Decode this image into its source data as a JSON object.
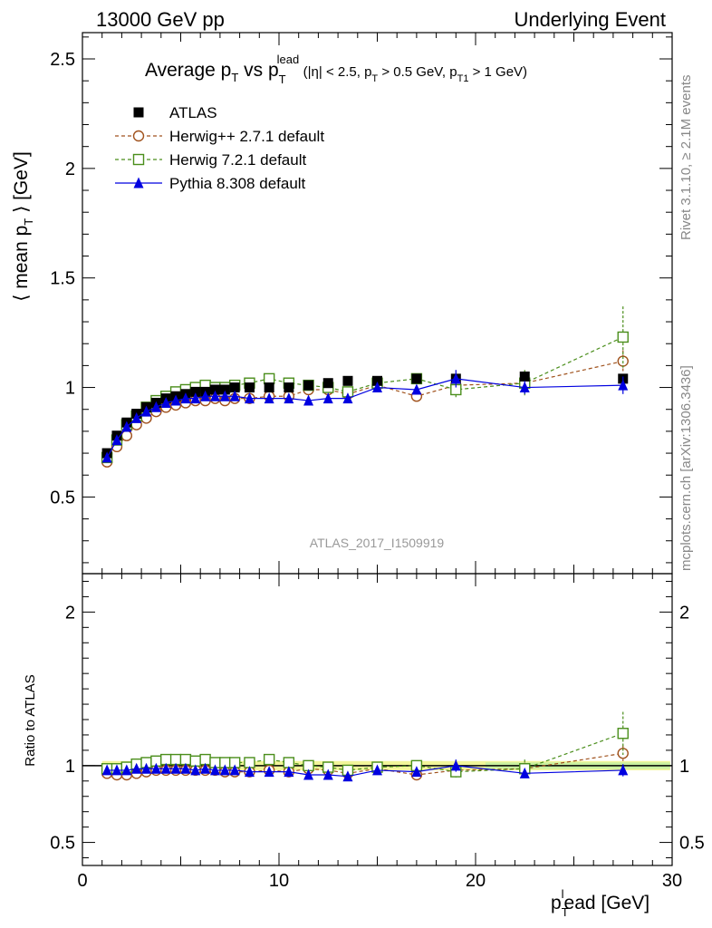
{
  "header": {
    "left": "13000 GeV pp",
    "right": "Underlying Event"
  },
  "side": {
    "rivet": "Rivet 3.1.10, ≥ 2.1M events",
    "mcplots": "mcplots.cern.ch [arXiv:1306.3436]"
  },
  "watermark": "ATLAS_2017_I1509919",
  "title": {
    "main": "Average p",
    "main_sub": "T",
    "vs": " vs p",
    "vs_sub": "T",
    "vs_sup": "lead",
    "cuts": "(|η| < 2.5, p",
    "cuts_sub1": "T",
    "cuts_mid": " > 0.5 GeV, p",
    "cuts_sub2": "T1",
    "cuts_end": " > 1 GeV)"
  },
  "axes": {
    "ylabel_top": "⟨ mean p",
    "ylabel_top_sub": "T",
    "ylabel_top_end": " ⟩ [GeV]",
    "ylabel_bottom": "Ratio to ATLAS",
    "xlabel": "p",
    "xlabel_sub": "T",
    "xlabel_sup": "l",
    "xlabel_end": "ead [GeV]",
    "xlim": [
      0,
      30
    ],
    "ylim_top": [
      0.15,
      2.62
    ],
    "ylim_bottom": [
      0.35,
      2.25
    ],
    "xticks": [
      "0",
      "10",
      "20",
      "30"
    ],
    "yticks_top": [
      "0.5",
      "1",
      "1.5",
      "2",
      "2.5"
    ],
    "yticks_bottom": [
      "0.5",
      "1",
      "2"
    ]
  },
  "legend": [
    {
      "label": "ATLAS",
      "marker": "square-filled",
      "color": "#000000"
    },
    {
      "label": "Herwig++ 2.7.1 default",
      "marker": "circle-open",
      "color": "#a0521d"
    },
    {
      "label": "Herwig 7.2.1 default",
      "marker": "square-open",
      "color": "#4a8e1b"
    },
    {
      "label": "Pythia 8.308 default",
      "marker": "triangle-filled",
      "color": "#0000e0"
    }
  ],
  "chart_data": {
    "type": "scatter",
    "title": "Average pT vs pT lead",
    "xlabel": "pT lead [GeV]",
    "ylabel": "⟨ mean pT ⟩ [GeV]",
    "grid": false,
    "legend_position": "top-left",
    "x": [
      1.25,
      1.75,
      2.25,
      2.75,
      3.25,
      3.75,
      4.25,
      4.75,
      5.25,
      5.75,
      6.25,
      6.75,
      7.25,
      7.75,
      8.5,
      9.5,
      10.5,
      11.5,
      12.5,
      13.5,
      15,
      17,
      19,
      22.5,
      27.5
    ],
    "series": [
      {
        "name": "ATLAS",
        "color": "#000000",
        "values": [
          0.7,
          0.78,
          0.84,
          0.88,
          0.91,
          0.93,
          0.95,
          0.96,
          0.97,
          0.98,
          0.98,
          0.99,
          0.99,
          1.0,
          1.0,
          1.0,
          1.0,
          1.01,
          1.02,
          1.03,
          1.03,
          1.04,
          1.04,
          1.05,
          1.04
        ],
        "errors": [
          0.01,
          0.01,
          0.01,
          0.01,
          0.01,
          0.01,
          0.01,
          0.01,
          0.01,
          0.01,
          0.01,
          0.01,
          0.01,
          0.01,
          0.01,
          0.01,
          0.01,
          0.01,
          0.01,
          0.01,
          0.01,
          0.01,
          0.02,
          0.02,
          0.02
        ]
      },
      {
        "name": "Herwig++ 2.7.1 default",
        "color": "#a0521d",
        "values": [
          0.66,
          0.73,
          0.78,
          0.83,
          0.86,
          0.89,
          0.91,
          0.92,
          0.93,
          0.94,
          0.94,
          0.95,
          0.94,
          0.95,
          0.95,
          0.96,
          0.96,
          0.99,
          0.99,
          0.97,
          1.01,
          0.96,
          1.01,
          1.02,
          1.12
        ],
        "errors": [
          0,
          0,
          0,
          0,
          0,
          0,
          0,
          0,
          0,
          0,
          0,
          0,
          0,
          0,
          0,
          0,
          0,
          0,
          0,
          0,
          0.01,
          0.02,
          0.03,
          0.04,
          0.05
        ]
      },
      {
        "name": "Herwig 7.2.1 default",
        "color": "#4a8e1b",
        "values": [
          0.68,
          0.76,
          0.83,
          0.87,
          0.91,
          0.94,
          0.96,
          0.98,
          0.99,
          1.0,
          1.01,
          1.0,
          1.0,
          1.01,
          1.02,
          1.04,
          1.02,
          1.01,
          1.0,
          0.98,
          1.02,
          1.04,
          0.99,
          1.02,
          1.23
        ],
        "errors": [
          0,
          0,
          0,
          0,
          0,
          0,
          0,
          0,
          0,
          0,
          0,
          0,
          0,
          0,
          0,
          0,
          0,
          0,
          0,
          0.01,
          0.01,
          0.02,
          0.04,
          0.06,
          0.14
        ]
      },
      {
        "name": "Pythia 8.308 default",
        "color": "#0000e0",
        "values": [
          0.68,
          0.76,
          0.82,
          0.86,
          0.89,
          0.91,
          0.93,
          0.94,
          0.95,
          0.95,
          0.96,
          0.96,
          0.96,
          0.96,
          0.95,
          0.95,
          0.95,
          0.94,
          0.95,
          0.95,
          1.0,
          0.99,
          1.04,
          1.0,
          1.01
        ],
        "errors": [
          0,
          0,
          0,
          0,
          0,
          0,
          0,
          0,
          0,
          0,
          0,
          0,
          0,
          0,
          0,
          0,
          0,
          0,
          0,
          0,
          0.01,
          0.02,
          0.04,
          0.03,
          0.04
        ]
      }
    ],
    "ratio": {
      "ylabel": "Ratio to ATLAS",
      "band": 0.03,
      "series": [
        {
          "name": "Herwig++ 2.7.1 default",
          "values": [
            0.95,
            0.94,
            0.94,
            0.95,
            0.96,
            0.97,
            0.97,
            0.97,
            0.97,
            0.97,
            0.97,
            0.97,
            0.96,
            0.96,
            0.96,
            0.97,
            0.96,
            0.98,
            0.97,
            0.95,
            0.98,
            0.94,
            0.97,
            0.98,
            1.08
          ],
          "errors": [
            0,
            0,
            0,
            0,
            0,
            0,
            0,
            0,
            0,
            0,
            0,
            0,
            0,
            0,
            0,
            0,
            0,
            0,
            0,
            0,
            0.01,
            0.02,
            0.03,
            0.04,
            0.05
          ]
        },
        {
          "name": "Herwig 7.2.1 default",
          "values": [
            0.98,
            0.98,
            0.99,
            1.01,
            1.02,
            1.03,
            1.04,
            1.04,
            1.04,
            1.03,
            1.04,
            1.02,
            1.02,
            1.02,
            1.02,
            1.04,
            1.02,
            1.0,
            0.99,
            0.97,
            0.99,
            1.0,
            0.96,
            0.98,
            1.21
          ],
          "errors": [
            0,
            0,
            0,
            0,
            0,
            0,
            0,
            0,
            0,
            0,
            0,
            0,
            0,
            0,
            0,
            0,
            0,
            0,
            0,
            0.01,
            0.01,
            0.02,
            0.04,
            0.06,
            0.14
          ]
        },
        {
          "name": "Pythia 8.308 default",
          "values": [
            0.97,
            0.97,
            0.97,
            0.98,
            0.98,
            0.98,
            0.98,
            0.98,
            0.98,
            0.97,
            0.98,
            0.97,
            0.97,
            0.97,
            0.96,
            0.96,
            0.96,
            0.94,
            0.94,
            0.93,
            0.97,
            0.96,
            1.0,
            0.95,
            0.97
          ],
          "errors": [
            0,
            0,
            0,
            0,
            0,
            0,
            0,
            0,
            0,
            0,
            0,
            0,
            0,
            0,
            0,
            0,
            0,
            0,
            0,
            0,
            0.01,
            0.02,
            0.04,
            0.03,
            0.04
          ]
        }
      ]
    }
  }
}
